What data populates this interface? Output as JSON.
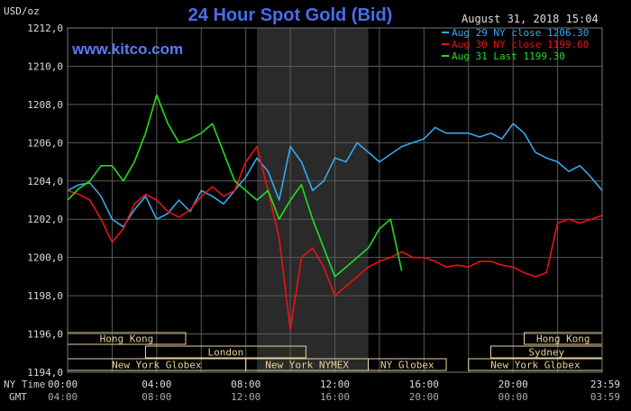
{
  "chart_data": {
    "type": "line",
    "title": "24 Hour Spot Gold (Bid)",
    "y_unit": "USD/oz",
    "date_stamp": "August 31, 2018 15:04",
    "watermark": "www.kitco.com",
    "ylim": [
      1194,
      1212
    ],
    "y_ticks": [
      "1212,0",
      "1210,0",
      "1208,0",
      "1206,0",
      "1204,0",
      "1202,0",
      "1200,0",
      "1198,0",
      "1196,0",
      "1194,0"
    ],
    "xlim": [
      0,
      24
    ],
    "x_row_labels": {
      "ny": "NY Time",
      "gmt": "GMT"
    },
    "x_ticks_ny": [
      "00:00",
      "04:00",
      "08:00",
      "12:00",
      "16:00",
      "20:00",
      "23:59"
    ],
    "x_ticks_gmt": [
      "04:00",
      "08:00",
      "12:00",
      "16:00",
      "20:00",
      "00:00",
      "03:59"
    ],
    "shaded_hours": [
      8.5,
      13.5
    ],
    "legend": [
      {
        "text": "Aug 29 NY close 1206.30",
        "color": "#33aaee"
      },
      {
        "text": "Aug 30 NY close 1199.60",
        "color": "#ee1111"
      },
      {
        "text": "Aug 31 Last 1199.30",
        "color": "#22dd22"
      }
    ],
    "sessions": [
      {
        "label": "Hong Kong",
        "row": 0,
        "x0": 0.0,
        "x1": 5.3
      },
      {
        "label": "London",
        "row": 1,
        "x0": 3.5,
        "x1": 10.7
      },
      {
        "label": "New York Globex",
        "row": 2,
        "x0": 0.0,
        "x1": 8.0
      },
      {
        "label": "New York NYMEX",
        "row": 2,
        "x0": 8.0,
        "x1": 13.5
      },
      {
        "label": "NY Globex",
        "row": 2,
        "x0": 13.5,
        "x1": 17.0
      },
      {
        "label": "Hong Kong",
        "row": 0,
        "x0": 20.5,
        "x1": 24.0
      },
      {
        "label": "Sydney",
        "row": 1,
        "x0": 19.0,
        "x1": 24.0
      },
      {
        "label": "New York Globex",
        "row": 2,
        "x0": 18.0,
        "x1": 24.0
      }
    ],
    "series": [
      {
        "color": "#33aaee",
        "x": [
          0,
          0.5,
          1,
          1.5,
          2,
          2.5,
          3,
          3.5,
          4,
          4.5,
          5,
          5.5,
          6,
          6.5,
          7,
          7.5,
          8,
          8.5,
          9,
          9.5,
          10,
          10.5,
          11,
          11.5,
          12,
          12.5,
          13,
          13.5,
          14,
          14.5,
          15,
          15.5,
          16,
          16.5,
          17,
          17.5,
          18,
          18.5,
          19,
          19.5,
          20,
          20.5,
          21,
          21.5,
          22,
          22.5,
          23,
          23.5,
          24
        ],
        "y": [
          1203.5,
          1203.8,
          1203.9,
          1203.2,
          1202.0,
          1201.6,
          1202.5,
          1203.2,
          1202.0,
          1202.3,
          1203.0,
          1202.4,
          1203.5,
          1203.2,
          1202.8,
          1203.5,
          1204.2,
          1205.2,
          1204.5,
          1203.0,
          1205.8,
          1205.0,
          1203.5,
          1204.0,
          1205.2,
          1205.0,
          1206.0,
          1205.5,
          1205.0,
          1205.4,
          1205.8,
          1206.0,
          1206.2,
          1206.8,
          1206.5,
          1206.5,
          1206.5,
          1206.3,
          1206.5,
          1206.2,
          1207.0,
          1206.5,
          1205.5,
          1205.2,
          1205.0,
          1204.5,
          1204.8,
          1204.2,
          1203.5
        ]
      },
      {
        "color": "#ee1111",
        "x": [
          0,
          0.5,
          1,
          1.5,
          2,
          2.5,
          3,
          3.5,
          4,
          4.5,
          5,
          5.5,
          6,
          6.5,
          7,
          7.5,
          8,
          8.5,
          9,
          9.5,
          10,
          10.5,
          11,
          11.5,
          12,
          12.5,
          13,
          13.5,
          14,
          14.5,
          15,
          15.5,
          16,
          16.5,
          17,
          17.5,
          18,
          18.5,
          19,
          19.5,
          20,
          20.5,
          21,
          21.5,
          22,
          22.5,
          23,
          23.5,
          24
        ],
        "y": [
          1203.5,
          1203.3,
          1203.0,
          1202.0,
          1200.8,
          1201.5,
          1202.8,
          1203.3,
          1203.0,
          1202.4,
          1202.1,
          1202.5,
          1203.2,
          1203.7,
          1203.2,
          1203.5,
          1205.0,
          1205.8,
          1203.5,
          1201.0,
          1196.2,
          1200.0,
          1200.5,
          1199.5,
          1198.0,
          1198.5,
          1199.0,
          1199.5,
          1199.8,
          1200.0,
          1200.3,
          1200.0,
          1200.0,
          1199.8,
          1199.5,
          1199.6,
          1199.5,
          1199.8,
          1199.8,
          1199.6,
          1199.5,
          1199.2,
          1199.0,
          1199.2,
          1201.8,
          1202.0,
          1201.8,
          1202.0,
          1202.2
        ]
      },
      {
        "color": "#22dd22",
        "x": [
          0,
          0.5,
          1,
          1.5,
          2,
          2.5,
          3,
          3.5,
          4,
          4.5,
          5,
          5.5,
          6,
          6.5,
          7,
          7.5,
          8,
          8.5,
          9,
          9.5,
          10,
          10.5,
          11,
          11.5,
          12,
          12.5,
          13,
          13.5,
          14,
          14.5,
          15
        ],
        "y": [
          1203.0,
          1203.6,
          1204.0,
          1204.8,
          1204.8,
          1204.0,
          1205.0,
          1206.5,
          1208.5,
          1207.0,
          1206.0,
          1206.2,
          1206.5,
          1207.0,
          1205.5,
          1204.0,
          1203.5,
          1203.0,
          1203.5,
          1202.0,
          1203.0,
          1203.8,
          1202.0,
          1200.5,
          1199.0,
          1199.5,
          1200.0,
          1200.5,
          1201.5,
          1202.0,
          1199.3
        ]
      }
    ]
  }
}
